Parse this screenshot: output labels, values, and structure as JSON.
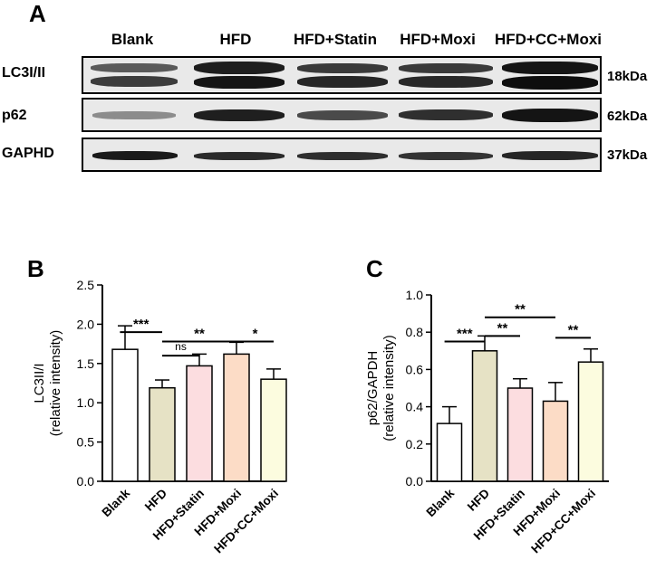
{
  "panel_a": {
    "letter": "A",
    "lanes": [
      "Blank",
      "HFD",
      "HFD+Statin",
      "HFD+Moxi",
      "HFD+CC+Moxi"
    ],
    "rows": [
      {
        "label": "LC3I/II",
        "size": "18kDa"
      },
      {
        "label": "p62",
        "size": "62kDa"
      },
      {
        "label": "GAPHD",
        "size": "37kDa"
      }
    ]
  },
  "panel_b": {
    "letter": "B"
  },
  "panel_c": {
    "letter": "C"
  },
  "chart_data": [
    {
      "type": "bar",
      "ylabel": "LC3II/I",
      "ylabel_sub": "(relative intensity)",
      "ylim": [
        0,
        2.5
      ],
      "yticks": [
        "0.0",
        "0.5",
        "1.0",
        "1.5",
        "2.0",
        "2.5"
      ],
      "categories": [
        "Blank",
        "HFD",
        "HFD+Statin",
        "HFD+Moxi",
        "HFD+CC+Moxi"
      ],
      "values": [
        1.68,
        1.19,
        1.47,
        1.62,
        1.3
      ],
      "errors": [
        0.3,
        0.1,
        0.15,
        0.15,
        0.13
      ],
      "colors": [
        "#ffffff",
        "#e6e2c5",
        "#fcdde0",
        "#fcdcc6",
        "#fcfcdf"
      ],
      "annotations": [
        {
          "from": 0,
          "to": 1,
          "y": 1.9,
          "text": "***"
        },
        {
          "from": 1,
          "to": 3,
          "y": 1.78,
          "text": "**"
        },
        {
          "from": 1,
          "to": 2,
          "y": 1.6,
          "text": "ns"
        },
        {
          "from": 3,
          "to": 4,
          "y": 1.78,
          "text": "*"
        }
      ]
    },
    {
      "type": "bar",
      "ylabel": "p62/GAPDH",
      "ylabel_sub": "(relative intensity)",
      "ylim": [
        0,
        1.0
      ],
      "yticks": [
        "0.0",
        "0.2",
        "0.4",
        "0.6",
        "0.8",
        "1.0"
      ],
      "categories": [
        "Blank",
        "HFD",
        "HFD+Statin",
        "HFD+Moxi",
        "HFD+CC+Moxi"
      ],
      "values": [
        0.31,
        0.7,
        0.5,
        0.43,
        0.64
      ],
      "errors": [
        0.09,
        0.08,
        0.05,
        0.1,
        0.07
      ],
      "colors": [
        "#ffffff",
        "#e6e2c5",
        "#fcdde0",
        "#fcdcc6",
        "#fcfcdf"
      ],
      "annotations": [
        {
          "from": 0,
          "to": 1,
          "y": 0.75,
          "text": "***"
        },
        {
          "from": 1,
          "to": 3,
          "y": 0.88,
          "text": "**"
        },
        {
          "from": 1,
          "to": 2,
          "y": 0.78,
          "text": "**"
        },
        {
          "from": 3,
          "to": 4,
          "y": 0.77,
          "text": "**"
        }
      ]
    }
  ]
}
